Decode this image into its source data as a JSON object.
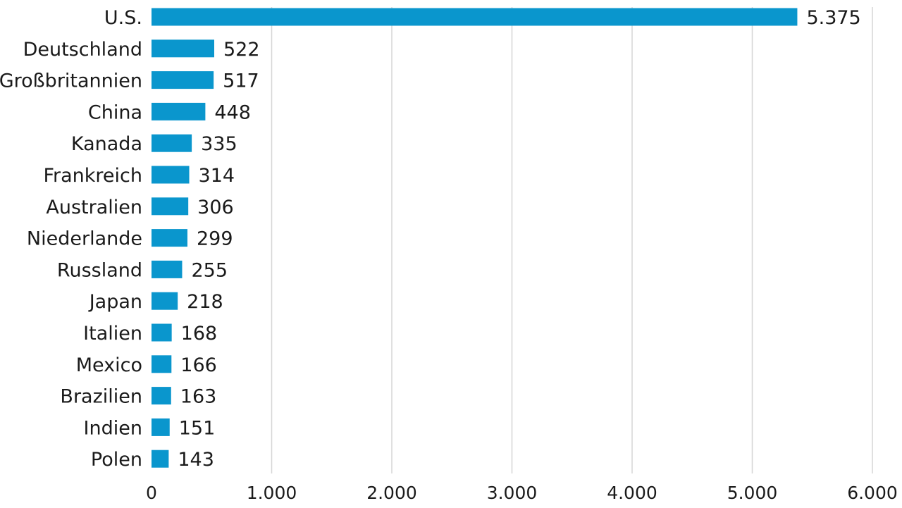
{
  "chart_data": {
    "type": "bar",
    "orientation": "horizontal",
    "categories": [
      "U.S.",
      "Deutschland",
      "Großbritannien",
      "China",
      "Kanada",
      "Frankreich",
      "Australien",
      "Niederlande",
      "Russland",
      "Japan",
      "Italien",
      "Mexico",
      "Brazilien",
      "Indien",
      "Polen"
    ],
    "values": [
      5375,
      522,
      517,
      448,
      335,
      314,
      306,
      299,
      255,
      218,
      168,
      166,
      163,
      151,
      143
    ],
    "value_labels": [
      "5.375",
      "522",
      "517",
      "448",
      "335",
      "314",
      "306",
      "299",
      "255",
      "218",
      "168",
      "166",
      "163",
      "151",
      "143"
    ],
    "xlim": [
      0,
      6000
    ],
    "x_ticks": [
      0,
      1000,
      2000,
      3000,
      4000,
      5000,
      6000
    ],
    "x_tick_labels": [
      "0",
      "1.000",
      "2.000",
      "3.000",
      "4.000",
      "5.000",
      "6.000"
    ],
    "grid": "vertical",
    "bar_color": "#0a96cd",
    "grid_color": "#d6d6d6",
    "text_color": "#1a1a1a"
  }
}
